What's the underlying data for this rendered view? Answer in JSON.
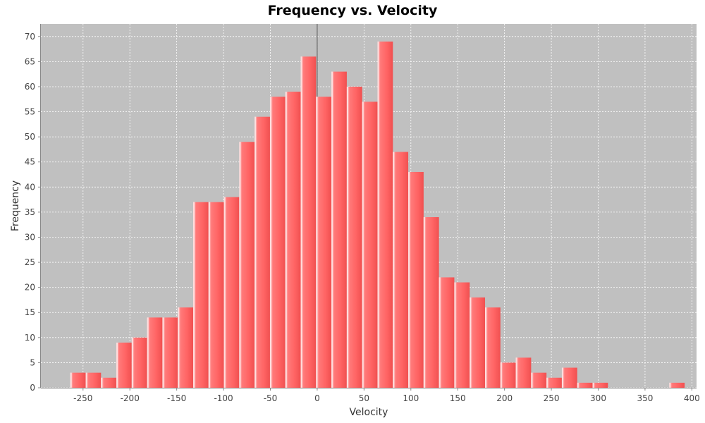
{
  "chart_data": {
    "type": "bar",
    "title": "Frequency vs. Velocity",
    "xlabel": "Velocity",
    "ylabel": "Frequency",
    "bin_width": 16.4,
    "xlim": [
      -295,
      405
    ],
    "ylim": [
      0,
      72.5
    ],
    "xticks": [
      -250,
      -200,
      -150,
      -100,
      -50,
      0,
      50,
      100,
      150,
      200,
      250,
      300,
      350,
      400
    ],
    "yticks": [
      0,
      5,
      10,
      15,
      20,
      25,
      30,
      35,
      40,
      45,
      50,
      55,
      60,
      65,
      70
    ],
    "bins": [
      {
        "x": -263.6,
        "value": 3
      },
      {
        "x": -247.2,
        "value": 3
      },
      {
        "x": -230.8,
        "value": 2
      },
      {
        "x": -214.4,
        "value": 9
      },
      {
        "x": -198.0,
        "value": 10
      },
      {
        "x": -181.6,
        "value": 14
      },
      {
        "x": -165.2,
        "value": 14
      },
      {
        "x": -148.8,
        "value": 16
      },
      {
        "x": -132.4,
        "value": 37
      },
      {
        "x": -116.0,
        "value": 37
      },
      {
        "x": -99.6,
        "value": 38
      },
      {
        "x": -83.2,
        "value": 49
      },
      {
        "x": -66.8,
        "value": 54
      },
      {
        "x": -50.4,
        "value": 58
      },
      {
        "x": -34.0,
        "value": 59
      },
      {
        "x": -17.6,
        "value": 66
      },
      {
        "x": -1.2,
        "value": 58
      },
      {
        "x": 15.2,
        "value": 63
      },
      {
        "x": 31.6,
        "value": 60
      },
      {
        "x": 48.0,
        "value": 57
      },
      {
        "x": 64.4,
        "value": 69
      },
      {
        "x": 80.8,
        "value": 47
      },
      {
        "x": 97.2,
        "value": 43
      },
      {
        "x": 113.6,
        "value": 34
      },
      {
        "x": 130.0,
        "value": 22
      },
      {
        "x": 146.4,
        "value": 21
      },
      {
        "x": 162.8,
        "value": 18
      },
      {
        "x": 179.2,
        "value": 16
      },
      {
        "x": 195.6,
        "value": 5
      },
      {
        "x": 212.0,
        "value": 6
      },
      {
        "x": 228.4,
        "value": 3
      },
      {
        "x": 244.8,
        "value": 2
      },
      {
        "x": 261.2,
        "value": 4
      },
      {
        "x": 277.6,
        "value": 1
      },
      {
        "x": 294.0,
        "value": 1
      },
      {
        "x": 375.9,
        "value": 1
      }
    ],
    "grid": true,
    "legend": "none",
    "colors": {
      "plot_background": "#c0c0c0",
      "bar_fill": "#ff6666",
      "bar_highlight": "#ffdede",
      "gridline": "#ffffff",
      "zero_marker": "#555555"
    }
  }
}
